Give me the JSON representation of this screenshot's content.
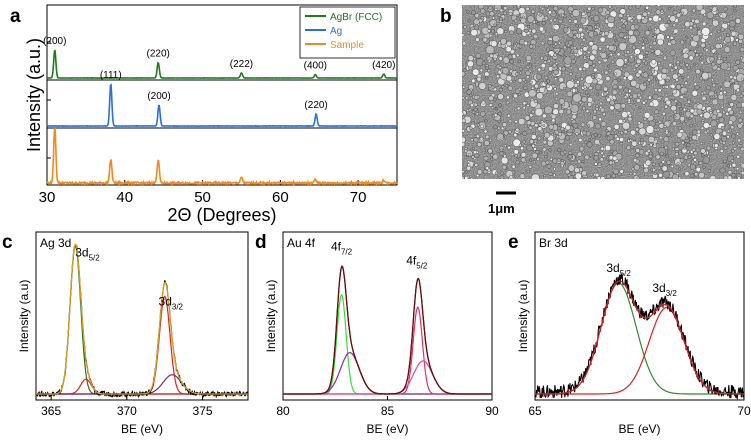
{
  "chart_data": [
    {
      "panel": "a",
      "type": "line",
      "xlabel": "2Θ (Degrees)",
      "ylabel": "Intensity (a.u.)",
      "xlim": [
        30,
        75
      ],
      "xticks": [
        30,
        40,
        50,
        60,
        70
      ],
      "legend_position": "top-right",
      "series": [
        {
          "name": "AgBr (FCC)",
          "color": "#1e7a1e",
          "peaks": [
            {
              "x": 31.0,
              "h": 1.0,
              "label": "(200)"
            },
            {
              "x": 44.3,
              "h": 0.55,
              "label": "(220)"
            },
            {
              "x": 55.0,
              "h": 0.18,
              "label": "(222)"
            },
            {
              "x": 64.5,
              "h": 0.12,
              "label": "(400)"
            },
            {
              "x": 73.3,
              "h": 0.14,
              "label": "(420)"
            }
          ]
        },
        {
          "name": "Ag",
          "color": "#2a6fd6",
          "peaks": [
            {
              "x": 38.2,
              "h": 1.0,
              "label": "(111)"
            },
            {
              "x": 44.4,
              "h": 0.5,
              "label": "(200)"
            },
            {
              "x": 64.6,
              "h": 0.28,
              "label": "(220)"
            }
          ]
        },
        {
          "name": "Sample",
          "color": "#f08a1c",
          "peaks": [
            {
              "x": 31.0,
              "h": 1.0
            },
            {
              "x": 38.2,
              "h": 0.42
            },
            {
              "x": 44.3,
              "h": 0.42
            },
            {
              "x": 55.0,
              "h": 0.1
            },
            {
              "x": 64.5,
              "h": 0.06
            },
            {
              "x": 73.3,
              "h": 0.05
            }
          ]
        }
      ]
    },
    {
      "panel": "c",
      "type": "line",
      "title": "Ag 3d",
      "xlabel": "BE (eV)",
      "ylabel": "Intensity (a.u)",
      "xlim": [
        364,
        378
      ],
      "xticks": [
        365,
        370,
        375
      ],
      "components": [
        {
          "center": 366.6,
          "height": 1.0,
          "width": 0.35,
          "color": "#2d6e2d"
        },
        {
          "center": 372.5,
          "height": 0.66,
          "width": 0.35,
          "color": "#e02020"
        },
        {
          "center": 367.3,
          "height": 0.1,
          "width": 0.35,
          "color": "#dd2222"
        },
        {
          "center": 373.0,
          "height": 0.13,
          "width": 0.6,
          "color": "#7a2a7a"
        }
      ],
      "annotations": [
        {
          "text": "3d",
          "sub": "5/2",
          "x": 367.4,
          "y": 0.93
        },
        {
          "text": "3d",
          "sub": "3/2",
          "x": 372.9,
          "y": 0.6
        }
      ]
    },
    {
      "panel": "d",
      "type": "line",
      "title": "Au 4f",
      "xlabel": "BE (eV)",
      "ylabel": "Intensity (a.u)",
      "xlim": [
        80,
        90
      ],
      "xticks": [
        80,
        85,
        90
      ],
      "components": [
        {
          "center": 82.8,
          "height": 0.72,
          "width": 0.22,
          "color": "#33dd33"
        },
        {
          "center": 83.2,
          "height": 0.3,
          "width": 0.45,
          "color": "#8a2a9a"
        },
        {
          "center": 86.45,
          "height": 0.63,
          "width": 0.22,
          "color": "#e0306a"
        },
        {
          "center": 86.7,
          "height": 0.24,
          "width": 0.45,
          "color": "#e04a9a"
        }
      ],
      "annotations": [
        {
          "text": "4f",
          "sub": "7/2",
          "x": 82.8,
          "y": 1.04
        },
        {
          "text": "4f",
          "sub": "5/2",
          "x": 86.4,
          "y": 0.94
        }
      ]
    },
    {
      "panel": "e",
      "type": "line",
      "title": "Br 3d",
      "xlabel": "BE (eV)",
      "ylabel": "Intensity (a.u)",
      "xlim": [
        65,
        70
      ],
      "xticks": [
        65,
        70
      ],
      "components": [
        {
          "center": 67.0,
          "height": 1.0,
          "width": 0.42,
          "color": "#2e8b2e"
        },
        {
          "center": 68.15,
          "height": 0.78,
          "width": 0.42,
          "color": "#e02020"
        }
      ],
      "annotations": [
        {
          "text": "3d",
          "sub": "5/2",
          "x": 67.0,
          "y": 1.1
        },
        {
          "text": "3d",
          "sub": "3/2",
          "x": 68.1,
          "y": 0.92
        }
      ]
    }
  ],
  "sem": {
    "panel": "b",
    "scalebar_label": "1μm"
  }
}
